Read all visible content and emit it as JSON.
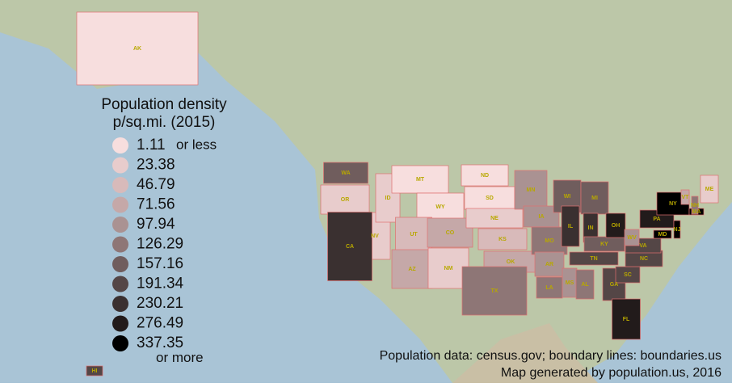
{
  "legend": {
    "title": "Population density",
    "subtitle": "p/sq.mi. (2015)",
    "items": [
      {
        "value": 1.11,
        "color": "#f7dede"
      },
      {
        "value": 23.38,
        "color": "#e8cccc"
      },
      {
        "value": 46.79,
        "color": "#d8baba"
      },
      {
        "value": 71.56,
        "color": "#c5a8a8"
      },
      {
        "value": 97.94,
        "color": "#aa9292"
      },
      {
        "value": 126.29,
        "color": "#8e7676"
      },
      {
        "value": 157.16,
        "color": "#705d5d"
      },
      {
        "value": 191.34,
        "color": "#544646"
      },
      {
        "value": 230.21,
        "color": "#3a3030"
      },
      {
        "value": 276.49,
        "color": "#221b1b"
      },
      {
        "value": 337.35,
        "color": "#000000"
      }
    ],
    "low_note": "or less",
    "high_note": "or more"
  },
  "states": [
    {
      "label": "AK",
      "color": "#f7dede"
    },
    {
      "label": "HI",
      "color": "#544646"
    },
    {
      "label": "WA",
      "color": "#705d5d"
    },
    {
      "label": "OR",
      "color": "#e8cccc"
    },
    {
      "label": "NV",
      "color": "#e8cccc"
    },
    {
      "label": "CA",
      "color": "#3a3030"
    },
    {
      "label": "ID",
      "color": "#e8cccc"
    },
    {
      "label": "MT",
      "color": "#f7dede"
    },
    {
      "label": "WY",
      "color": "#f7dede"
    },
    {
      "label": "UT",
      "color": "#d8baba"
    },
    {
      "label": "AZ",
      "color": "#c5a8a8"
    },
    {
      "label": "CO",
      "color": "#c5a8a8"
    },
    {
      "label": "NM",
      "color": "#e8cccc"
    },
    {
      "label": "ND",
      "color": "#f7dede"
    },
    {
      "label": "SD",
      "color": "#f7dede"
    },
    {
      "label": "NE",
      "color": "#e8cccc"
    },
    {
      "label": "KS",
      "color": "#d8baba"
    },
    {
      "label": "OK",
      "color": "#c5a8a8"
    },
    {
      "label": "TX",
      "color": "#8e7676"
    },
    {
      "label": "MN",
      "color": "#aa9292"
    },
    {
      "label": "IA",
      "color": "#aa9292"
    },
    {
      "label": "MO",
      "color": "#8e7676"
    },
    {
      "label": "AR",
      "color": "#aa9292"
    },
    {
      "label": "LA",
      "color": "#8e7676"
    },
    {
      "label": "WI",
      "color": "#705d5d"
    },
    {
      "label": "IL",
      "color": "#3a3030"
    },
    {
      "label": "MS",
      "color": "#aa9292"
    },
    {
      "label": "MI",
      "color": "#705d5d"
    },
    {
      "label": "IN",
      "color": "#3a3030"
    },
    {
      "label": "KY",
      "color": "#705d5d"
    },
    {
      "label": "TN",
      "color": "#544646"
    },
    {
      "label": "AL",
      "color": "#8e7676"
    },
    {
      "label": "OH",
      "color": "#221b1b"
    },
    {
      "label": "GA",
      "color": "#544646"
    },
    {
      "label": "FL",
      "color": "#221b1b"
    },
    {
      "label": "SC",
      "color": "#544646"
    },
    {
      "label": "NC",
      "color": "#544646"
    },
    {
      "label": "VA",
      "color": "#544646"
    },
    {
      "label": "WV",
      "color": "#aa9292"
    },
    {
      "label": "PA",
      "color": "#221b1b"
    },
    {
      "label": "NY",
      "color": "#000000"
    },
    {
      "label": "MD",
      "color": "#000000"
    },
    {
      "label": "NJ",
      "color": "#000000"
    },
    {
      "label": "MA",
      "color": "#000000"
    },
    {
      "label": "VT",
      "color": "#c5a8a8"
    },
    {
      "label": "NH",
      "color": "#8e7676"
    },
    {
      "label": "ME",
      "color": "#e8cccc"
    }
  ],
  "credits": [
    "Population data: census.gov; boundary lines: boundaries.us",
    "Map generated by population.us, 2016"
  ]
}
